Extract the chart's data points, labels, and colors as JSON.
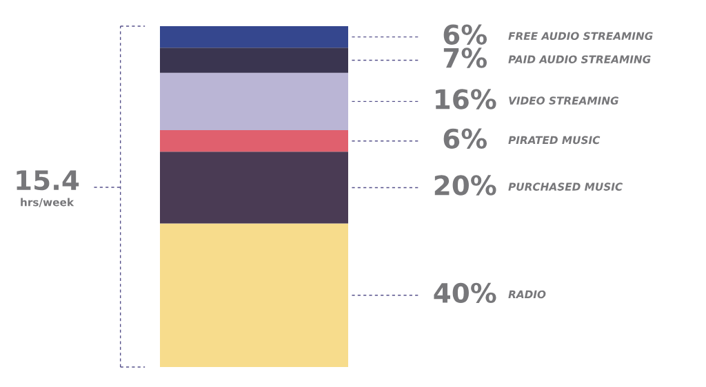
{
  "chart_data": {
    "type": "bar",
    "stacked": true,
    "categories": [
      null
    ],
    "series": [
      {
        "name": "RADIO",
        "color": "#f7dc8c",
        "values": [
          40
        ],
        "value_labels": [
          "40%"
        ]
      },
      {
        "name": "PURCHASED MUSIC",
        "color": "#4a3b54",
        "values": [
          20
        ],
        "value_labels": [
          "20%"
        ]
      },
      {
        "name": "PIRATED MUSIC",
        "color": "#e0606e",
        "values": [
          6
        ],
        "value_labels": [
          "6%"
        ]
      },
      {
        "name": "VIDEO STREAMING",
        "color": "#bab5d5",
        "values": [
          16
        ],
        "value_labels": [
          "16%"
        ]
      },
      {
        "name": "PAID AUDIO STREAMING",
        "color": "#3a3550",
        "values": [
          7
        ],
        "value_labels": [
          "7%"
        ]
      },
      {
        "name": "FREE AUDIO STREAMING",
        "color": "#35478e",
        "values": [
          6
        ],
        "value_labels": [
          "6%"
        ]
      }
    ],
    "annotations": [
      "15.4",
      "hrs/week"
    ]
  }
}
